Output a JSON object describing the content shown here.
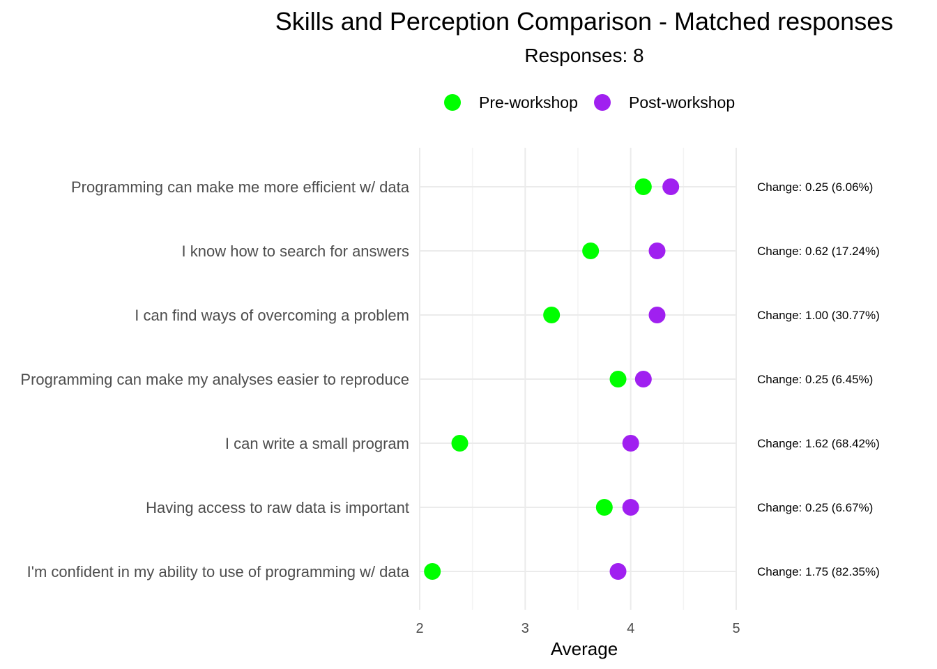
{
  "chart_data": {
    "type": "scatter",
    "title": "Skills and Perception Comparison - Matched responses",
    "subtitle": "Responses: 8",
    "xlabel": "Average",
    "ylabel": "",
    "xlim": [
      2,
      5
    ],
    "xticks": [
      "2",
      "3",
      "4",
      "5"
    ],
    "legend_position": "top",
    "grid": true,
    "categories": [
      "Programming can make me more efficient w/ data",
      "I know how to search for answers",
      "I can find ways of overcoming a problem",
      "Programming can make my analyses easier to reproduce",
      "I can write a small program",
      "Having access to raw data is important",
      "I'm confident in my ability to use of programming w/ data"
    ],
    "series": [
      {
        "name": "Pre-workshop",
        "color": "#00ff00",
        "values": [
          4.12,
          3.62,
          3.25,
          3.88,
          2.38,
          3.75,
          2.12
        ]
      },
      {
        "name": "Post-workshop",
        "color": "#a020f0",
        "values": [
          4.38,
          4.25,
          4.25,
          4.12,
          4.0,
          4.0,
          3.88
        ]
      }
    ],
    "annotations": [
      "Change: 0.25 (6.06%)",
      "Change: 0.62 (17.24%)",
      "Change: 1.00 (30.77%)",
      "Change: 0.25 (6.45%)",
      "Change: 1.62 (68.42%)",
      "Change: 0.25 (6.67%)",
      "Change: 1.75 (82.35%)"
    ]
  }
}
